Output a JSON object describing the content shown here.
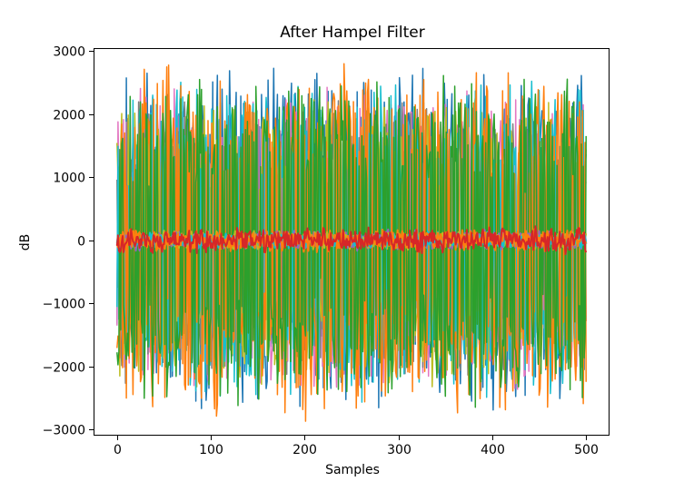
{
  "chart_data": {
    "type": "line",
    "title": "After Hampel Filter",
    "xlabel": "Samples",
    "ylabel": "dB",
    "xlim": [
      -25,
      525
    ],
    "ylim": [
      -3100,
      3050
    ],
    "x_ticks": [
      0,
      100,
      200,
      300,
      400,
      500
    ],
    "y_ticks": [
      -3000,
      -2000,
      -1000,
      0,
      1000,
      2000,
      3000
    ],
    "x_tick_labels": [
      "0",
      "100",
      "200",
      "300",
      "400",
      "500"
    ],
    "y_tick_labels": [
      "−3000",
      "−2000",
      "−1000",
      "0",
      "1000",
      "2000",
      "3000"
    ],
    "grid": false,
    "legend": "none",
    "series_colors": [
      "#1f77b4",
      "#ff7f0e",
      "#2ca02c",
      "#d62728",
      "#9467bd",
      "#8c564b",
      "#e377c2",
      "#7f7f7f",
      "#bcbd22",
      "#17becf"
    ],
    "samples": 501,
    "series": [
      {
        "role": "high-amplitude",
        "color": "#1f77b4",
        "amplitude": 2800,
        "seed": 11
      },
      {
        "role": "high-amplitude",
        "color": "#e377c2",
        "amplitude": 2500,
        "seed": 23
      },
      {
        "role": "high-amplitude",
        "color": "#7f7f7f",
        "amplitude": 2300,
        "seed": 37
      },
      {
        "role": "high-amplitude",
        "color": "#bcbd22",
        "amplitude": 2400,
        "seed": 41
      },
      {
        "role": "high-amplitude",
        "color": "#17becf",
        "amplitude": 2600,
        "seed": 53
      },
      {
        "role": "high-amplitude",
        "color": "#ff7f0e",
        "amplitude": 2900,
        "seed": 67
      },
      {
        "role": "high-amplitude",
        "color": "#2ca02c",
        "amplitude": 2700,
        "seed": 79
      },
      {
        "role": "low-amplitude",
        "color": "#9467bd",
        "amplitude": 180,
        "seed": 83
      },
      {
        "role": "low-amplitude",
        "color": "#bcbd22",
        "amplitude": 160,
        "seed": 97
      },
      {
        "role": "low-amplitude",
        "color": "#17becf",
        "amplitude": 150,
        "seed": 101
      },
      {
        "role": "low-amplitude",
        "color": "#ff7f0e",
        "amplitude": 200,
        "seed": 113
      },
      {
        "role": "low-amplitude",
        "color": "#d62728",
        "amplitude": 230,
        "seed": 127
      }
    ]
  }
}
